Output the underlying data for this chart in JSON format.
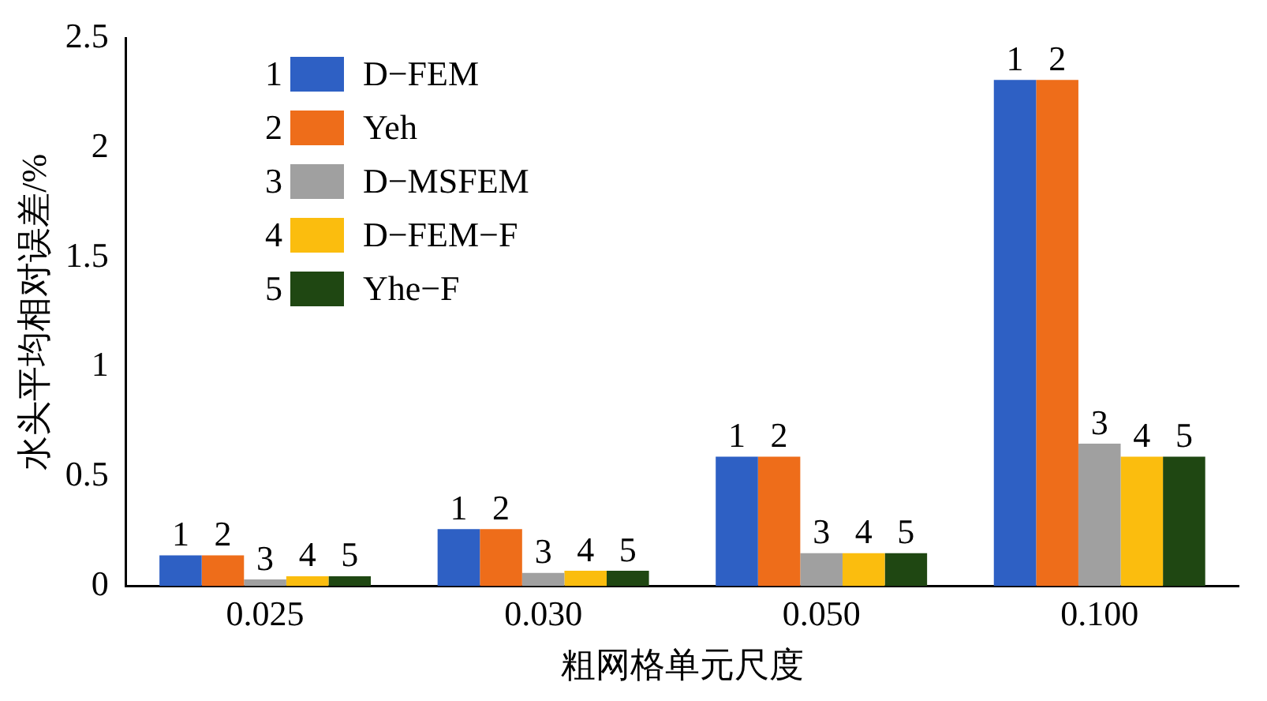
{
  "chart_data": {
    "type": "bar",
    "xlabel": "粗网格单元尺度",
    "ylabel": "水头平均相对误差/%",
    "categories": [
      "0.025",
      "0.030",
      "0.050",
      "0.100"
    ],
    "series": [
      {
        "name": "D−FEM",
        "color": "#2e60c4",
        "values": [
          0.14,
          0.26,
          0.59,
          2.31
        ]
      },
      {
        "name": "Yeh",
        "color": "#ee6d1a",
        "values": [
          0.14,
          0.26,
          0.59,
          2.31
        ]
      },
      {
        "name": "D−MSFEM",
        "color": "#a0a0a0",
        "values": [
          0.03,
          0.06,
          0.15,
          0.65
        ]
      },
      {
        "name": "D−FEM−F",
        "color": "#fbbd0e",
        "values": [
          0.045,
          0.07,
          0.15,
          0.59
        ]
      },
      {
        "name": "Yhe−F",
        "color": "#1f4712",
        "values": [
          0.045,
          0.07,
          0.15,
          0.59
        ]
      }
    ],
    "annotations": [
      "1",
      "2",
      "3",
      "4",
      "5",
      "1",
      "1",
      "1",
      "1",
      "2",
      "2",
      "2",
      "2",
      "3",
      "3",
      "3",
      "3",
      "4",
      "4",
      "4",
      "4",
      "5",
      "5",
      "5",
      "5"
    ],
    "ylim": [
      0,
      2.5
    ],
    "yticks": [
      0,
      0.5,
      1,
      1.5,
      2,
      2.5
    ],
    "grid": false,
    "legend": "top left"
  }
}
